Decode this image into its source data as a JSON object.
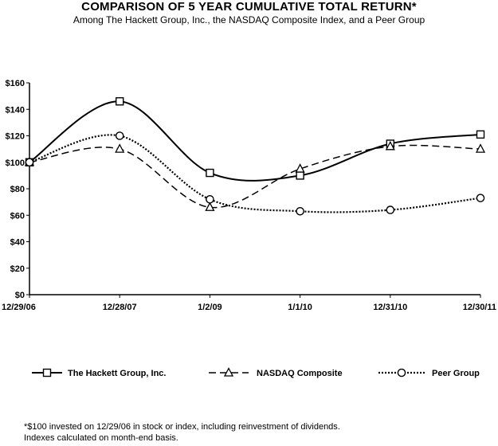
{
  "title": "COMPARISON OF 5 YEAR CUMULATIVE TOTAL RETURN*",
  "subtitle": "Among The Hackett Group, Inc., the NASDAQ Composite Index, and a Peer Group",
  "footnote": {
    "line1": "*$100 invested on 12/29/06 in stock or index, including reinvestment of dividends.",
    "line2": "Indexes calculated on month-end basis."
  },
  "chart_data": {
    "type": "line",
    "title": "COMPARISON OF 5 YEAR CUMULATIVE TOTAL RETURN*",
    "categories": [
      "12/29/06",
      "12/28/07",
      "1/2/09",
      "1/1/10",
      "12/31/10",
      "12/30/11"
    ],
    "y_ticks": [
      "$0",
      "$20",
      "$40",
      "$60",
      "$80",
      "$100",
      "$120",
      "$140",
      "$160"
    ],
    "ylim": [
      0,
      160
    ],
    "xlabel": "",
    "ylabel": "",
    "legend_position": "bottom",
    "series": [
      {
        "name": "The Hackett Group, Inc.",
        "values": [
          100,
          146,
          92,
          90,
          114,
          121
        ],
        "marker": "square",
        "dash": "solid"
      },
      {
        "name": "NASDAQ Composite",
        "values": [
          100,
          110,
          66,
          95,
          112,
          110
        ],
        "marker": "triangle",
        "dash": "dashed"
      },
      {
        "name": "Peer Group",
        "values": [
          100,
          120,
          72,
          63,
          64,
          73
        ],
        "marker": "circle",
        "dash": "dotted"
      }
    ]
  }
}
